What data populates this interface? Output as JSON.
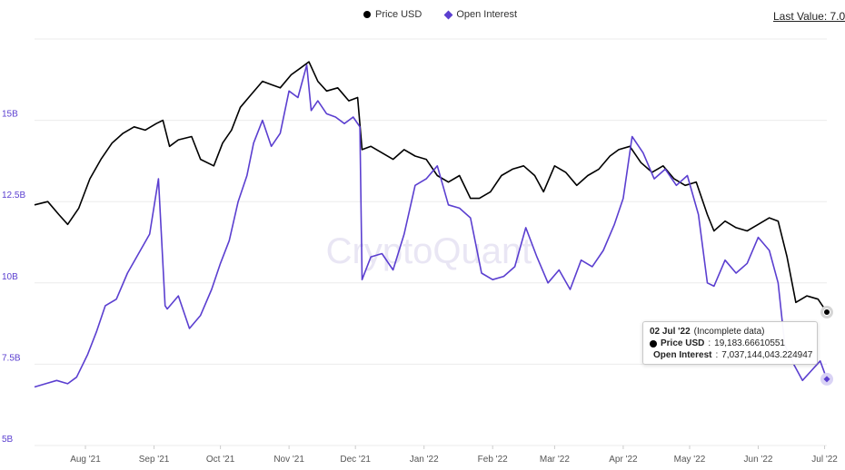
{
  "legend": {
    "price_label": "Price USD",
    "oi_label": "Open Interest"
  },
  "last_value": "Last Value: 7.0",
  "watermark": "CryptoQuant",
  "tooltip": {
    "date": "02 Jul '22",
    "note": "(Incomplete data)",
    "price_name": "Price USD",
    "price_value": "19,183.66610551",
    "oi_name": "Open Interest",
    "oi_value": "7,037,144,043.224947"
  },
  "colors": {
    "price": "#000000",
    "open_interest": "#5b3fd0",
    "grid": "#ebebeb",
    "axis_text": "#5b3fd0",
    "tick_text": "#555555"
  },
  "chart_data": {
    "type": "line",
    "x_ticks": [
      "Aug '21",
      "Sep '21",
      "Oct '21",
      "Nov '21",
      "Dec '21",
      "Jan '22",
      "Feb '22",
      "Mar '22",
      "Apr '22",
      "May '22",
      "Jun '22",
      "Jul '22"
    ],
    "y_ticks": [
      "5B",
      "7.5B",
      "10B",
      "12.5B",
      "15B"
    ],
    "y_tick_values": [
      5,
      7.5,
      10,
      12.5,
      15
    ],
    "ylim": [
      5,
      17.5
    ],
    "x_range": [
      "2021-07-09",
      "2022-07-02"
    ],
    "grid": true,
    "legend_position": "top-center",
    "series": [
      {
        "name": "Price USD",
        "x": [
          "2021-07-09",
          "2021-07-15",
          "2021-07-20",
          "2021-07-24",
          "2021-07-29",
          "2021-08-03",
          "2021-08-08",
          "2021-08-13",
          "2021-08-18",
          "2021-08-23",
          "2021-08-28",
          "2021-09-02",
          "2021-09-05",
          "2021-09-08",
          "2021-09-12",
          "2021-09-18",
          "2021-09-22",
          "2021-09-28",
          "2021-10-02",
          "2021-10-06",
          "2021-10-10",
          "2021-10-15",
          "2021-10-20",
          "2021-10-24",
          "2021-10-28",
          "2021-11-02",
          "2021-11-06",
          "2021-11-10",
          "2021-11-14",
          "2021-11-18",
          "2021-11-23",
          "2021-11-28",
          "2021-12-02",
          "2021-12-04",
          "2021-12-08",
          "2021-12-13",
          "2021-12-18",
          "2021-12-23",
          "2021-12-28",
          "2022-01-02",
          "2022-01-07",
          "2022-01-12",
          "2022-01-17",
          "2022-01-22",
          "2022-01-26",
          "2022-01-31",
          "2022-02-05",
          "2022-02-10",
          "2022-02-15",
          "2022-02-20",
          "2022-02-24",
          "2022-03-01",
          "2022-03-06",
          "2022-03-11",
          "2022-03-16",
          "2022-03-21",
          "2022-03-26",
          "2022-03-30",
          "2022-04-04",
          "2022-04-09",
          "2022-04-14",
          "2022-04-19",
          "2022-04-24",
          "2022-04-29",
          "2022-05-04",
          "2022-05-09",
          "2022-05-12",
          "2022-05-17",
          "2022-05-22",
          "2022-05-27",
          "2022-06-01",
          "2022-06-06",
          "2022-06-10",
          "2022-06-14",
          "2022-06-18",
          "2022-06-23",
          "2022-06-28",
          "2022-07-02"
        ],
        "values": [
          12.4,
          12.5,
          12.1,
          11.8,
          12.3,
          13.2,
          13.8,
          14.3,
          14.6,
          14.8,
          14.7,
          14.9,
          15.0,
          14.2,
          14.4,
          14.5,
          13.8,
          13.6,
          14.3,
          14.7,
          15.4,
          15.8,
          16.2,
          16.1,
          16.0,
          16.4,
          16.6,
          16.8,
          16.2,
          15.9,
          16.0,
          15.6,
          15.7,
          14.1,
          14.2,
          14.0,
          13.8,
          14.1,
          13.9,
          13.8,
          13.3,
          13.1,
          13.3,
          12.6,
          12.6,
          12.8,
          13.3,
          13.5,
          13.6,
          13.3,
          12.8,
          13.6,
          13.4,
          13.0,
          13.3,
          13.5,
          13.9,
          14.1,
          14.2,
          13.7,
          13.4,
          13.6,
          13.2,
          13.0,
          13.1,
          12.1,
          11.6,
          11.9,
          11.7,
          11.6,
          11.8,
          12.0,
          11.9,
          10.8,
          9.4,
          9.6,
          9.5,
          9.1
        ]
      },
      {
        "name": "Open Interest",
        "x": [
          "2021-07-09",
          "2021-07-14",
          "2021-07-19",
          "2021-07-24",
          "2021-07-28",
          "2021-08-02",
          "2021-08-06",
          "2021-08-10",
          "2021-08-15",
          "2021-08-20",
          "2021-08-25",
          "2021-08-30",
          "2021-09-03",
          "2021-09-06",
          "2021-09-07",
          "2021-09-12",
          "2021-09-17",
          "2021-09-22",
          "2021-09-27",
          "2021-10-01",
          "2021-10-05",
          "2021-10-09",
          "2021-10-13",
          "2021-10-16",
          "2021-10-20",
          "2021-10-24",
          "2021-10-28",
          "2021-11-01",
          "2021-11-05",
          "2021-11-09",
          "2021-11-11",
          "2021-11-14",
          "2021-11-18",
          "2021-11-22",
          "2021-11-26",
          "2021-11-30",
          "2021-12-03",
          "2021-12-04",
          "2021-12-08",
          "2021-12-13",
          "2021-12-18",
          "2021-12-23",
          "2021-12-28",
          "2022-01-02",
          "2022-01-07",
          "2022-01-12",
          "2022-01-17",
          "2022-01-22",
          "2022-01-27",
          "2022-02-01",
          "2022-02-06",
          "2022-02-11",
          "2022-02-16",
          "2022-02-21",
          "2022-02-26",
          "2022-03-03",
          "2022-03-08",
          "2022-03-13",
          "2022-03-18",
          "2022-03-23",
          "2022-03-28",
          "2022-04-01",
          "2022-04-05",
          "2022-04-10",
          "2022-04-15",
          "2022-04-20",
          "2022-04-25",
          "2022-04-30",
          "2022-05-05",
          "2022-05-09",
          "2022-05-12",
          "2022-05-17",
          "2022-05-22",
          "2022-05-27",
          "2022-06-01",
          "2022-06-06",
          "2022-06-10",
          "2022-06-13",
          "2022-06-17",
          "2022-06-21",
          "2022-06-25",
          "2022-06-29",
          "2022-07-02"
        ],
        "values": [
          6.8,
          6.9,
          7.0,
          6.9,
          7.1,
          7.8,
          8.5,
          9.3,
          9.5,
          10.3,
          10.9,
          11.5,
          13.2,
          9.3,
          9.2,
          9.6,
          8.6,
          9.0,
          9.8,
          10.6,
          11.3,
          12.5,
          13.3,
          14.3,
          15.0,
          14.2,
          14.6,
          15.9,
          15.7,
          16.7,
          15.3,
          15.6,
          15.2,
          15.1,
          14.9,
          15.1,
          14.8,
          10.1,
          10.8,
          10.9,
          10.4,
          11.5,
          13.0,
          13.2,
          13.6,
          12.4,
          12.3,
          12.0,
          10.3,
          10.1,
          10.2,
          10.5,
          11.7,
          10.8,
          10.0,
          10.4,
          9.8,
          10.7,
          10.5,
          11.0,
          11.8,
          12.6,
          14.5,
          14.0,
          13.2,
          13.5,
          13.0,
          13.3,
          12.1,
          10.0,
          9.9,
          10.7,
          10.3,
          10.6,
          11.4,
          11.0,
          10.0,
          8.1,
          7.5,
          7.0,
          7.3,
          7.6,
          7.04
        ]
      }
    ]
  }
}
